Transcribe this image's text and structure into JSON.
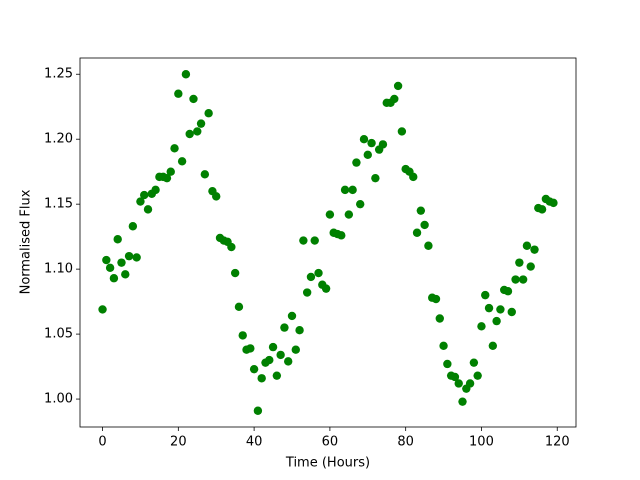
{
  "chart_data": {
    "type": "scatter",
    "x_label": "Time (Hours)",
    "y_label": "Normalised Flux",
    "color": "#008000",
    "xlim": [
      -5.95,
      124.95
    ],
    "ylim": [
      0.9785,
      1.2625
    ],
    "xticks": [
      0,
      20,
      40,
      60,
      80,
      100,
      120
    ],
    "yticks": [
      {
        "value": 1.0,
        "label": "1.00"
      },
      {
        "value": 1.05,
        "label": "1.05"
      },
      {
        "value": 1.1,
        "label": "1.10"
      },
      {
        "value": 1.15,
        "label": "1.15"
      },
      {
        "value": 1.2,
        "label": "1.20"
      },
      {
        "value": 1.25,
        "label": "1.25"
      }
    ],
    "x": [
      0,
      1,
      2,
      3,
      4,
      5,
      6,
      7,
      8,
      9,
      10,
      11,
      12,
      13,
      14,
      15,
      16,
      17,
      18,
      19,
      20,
      21,
      22,
      23,
      24,
      25,
      26,
      27,
      28,
      29,
      30,
      31,
      32,
      33,
      34,
      35,
      36,
      37,
      38,
      39,
      40,
      41,
      42,
      43,
      44,
      45,
      46,
      47,
      48,
      49,
      50,
      51,
      52,
      53,
      54,
      55,
      56,
      57,
      58,
      59,
      60,
      61,
      62,
      63,
      64,
      65,
      66,
      67,
      68,
      69,
      70,
      71,
      72,
      73,
      74,
      75,
      76,
      77,
      78,
      79,
      80,
      81,
      82,
      83,
      84,
      85,
      86,
      87,
      88,
      89,
      90,
      91,
      92,
      93,
      94,
      95,
      96,
      97,
      98,
      99,
      100,
      101,
      102,
      103,
      104,
      105,
      106,
      107,
      108,
      109,
      110,
      111,
      112,
      113,
      114,
      115,
      116,
      117,
      118,
      119
    ],
    "values": [
      1.069,
      1.107,
      1.101,
      1.093,
      1.123,
      1.105,
      1.096,
      1.11,
      1.133,
      1.109,
      1.152,
      1.157,
      1.146,
      1.158,
      1.161,
      1.171,
      1.171,
      1.17,
      1.175,
      1.193,
      1.235,
      1.183,
      1.25,
      1.204,
      1.231,
      1.206,
      1.212,
      1.173,
      1.22,
      1.16,
      1.156,
      1.124,
      1.122,
      1.121,
      1.117,
      1.097,
      1.071,
      1.049,
      1.038,
      1.039,
      1.023,
      0.991,
      1.016,
      1.028,
      1.03,
      1.04,
      1.018,
      1.034,
      1.055,
      1.029,
      1.064,
      1.038,
      1.053,
      1.122,
      1.082,
      1.094,
      1.122,
      1.097,
      1.088,
      1.085,
      1.142,
      1.128,
      1.127,
      1.126,
      1.161,
      1.142,
      1.161,
      1.182,
      1.15,
      1.2,
      1.188,
      1.197,
      1.17,
      1.192,
      1.196,
      1.228,
      1.228,
      1.231,
      1.241,
      1.206,
      1.177,
      1.175,
      1.171,
      1.128,
      1.145,
      1.134,
      1.118,
      1.078,
      1.077,
      1.062,
      1.041,
      1.027,
      1.018,
      1.017,
      1.012,
      0.998,
      1.008,
      1.012,
      1.028,
      1.018,
      1.056,
      1.08,
      1.07,
      1.041,
      1.06,
      1.069,
      1.084,
      1.083,
      1.067,
      1.092,
      1.105,
      1.092,
      1.118,
      1.102,
      1.115,
      1.147,
      1.146,
      1.154,
      1.152,
      1.151
    ]
  }
}
